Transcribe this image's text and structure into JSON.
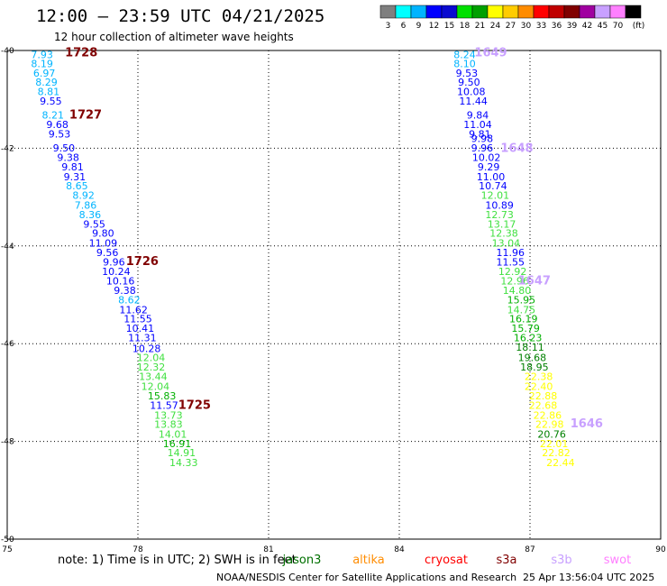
{
  "header": {
    "title": "12:00 – 23:59 UTC 04/21/2025",
    "subtitle": "12 hour collection of altimeter wave heights"
  },
  "colorbar": {
    "labels": [
      "3",
      "6",
      "9",
      "12",
      "15",
      "18",
      "21",
      "24",
      "27",
      "30",
      "33",
      "36",
      "39",
      "42",
      "45",
      "70",
      "(ft)"
    ],
    "colors": [
      "#7f7f7f",
      "#00ffff",
      "#00b4ff",
      "#0000ff",
      "#0a0ad0",
      "#00e000",
      "#00a000",
      "#ffff00",
      "#ffcc00",
      "#ff8c00",
      "#ff0000",
      "#c00000",
      "#800000",
      "#a000a0",
      "#c8a0ff",
      "#ff80ff",
      "#000000"
    ]
  },
  "footer": {
    "note_text": "note:  1) Time is in UTC; 2) SWH is in feet",
    "credit": "NOAA/NESDIS Center for Satellite Applications and Research",
    "timestamp": "25 Apr 13:56:04 UTC 2025",
    "satellites": [
      {
        "name": "jason3",
        "color": "#007000"
      },
      {
        "name": "altika",
        "color": "#ff8c00"
      },
      {
        "name": "cryosat",
        "color": "#ff0000"
      },
      {
        "name": "s3a",
        "color": "#800000"
      },
      {
        "name": "s3b",
        "color": "#c8a0ff"
      },
      {
        "name": "swot",
        "color": "#ff80ff"
      }
    ]
  },
  "chart_data": {
    "type": "scatter",
    "title": "12:00 – 23:59 UTC 04/21/2025",
    "xlim": [
      75,
      90
    ],
    "ylim": [
      -50,
      -40
    ],
    "xticks": [
      75,
      78,
      81,
      84,
      87,
      90
    ],
    "yticks": [
      -40,
      -42,
      -44,
      -46,
      -48,
      -50
    ],
    "ytick_labels": [
      "-40",
      "-42",
      "-44",
      "-46",
      "-48",
      "-50"
    ],
    "grid": true,
    "series": [
      {
        "name": "s3b",
        "color": "#c8a0ff",
        "points": [
          {
            "x": 75.8,
            "y": -40.08,
            "v": "7.93"
          },
          {
            "x": 75.8,
            "y": -40.27,
            "v": "8.19"
          },
          {
            "x": 75.85,
            "y": -40.46,
            "v": "6.97"
          },
          {
            "x": 75.9,
            "y": -40.65,
            "v": "8.29"
          },
          {
            "x": 75.95,
            "y": -40.84,
            "v": "8.81"
          },
          {
            "x": 76.0,
            "y": -41.03,
            "v": "9.55"
          },
          {
            "x": 76.05,
            "y": -41.32,
            "v": "8.21"
          },
          {
            "x": 76.15,
            "y": -41.51,
            "v": "9.68"
          },
          {
            "x": 76.2,
            "y": -41.71,
            "v": "9.53"
          },
          {
            "x": 76.3,
            "y": -41.99,
            "v": "9.50"
          },
          {
            "x": 76.4,
            "y": -42.19,
            "v": "9.38"
          },
          {
            "x": 76.5,
            "y": -42.38,
            "v": "9.81"
          },
          {
            "x": 76.55,
            "y": -42.58,
            "v": "9.31"
          },
          {
            "x": 76.6,
            "y": -42.77,
            "v": "8.65"
          },
          {
            "x": 76.75,
            "y": -42.96,
            "v": "8.92"
          },
          {
            "x": 76.8,
            "y": -43.16,
            "v": "7.86"
          },
          {
            "x": 76.9,
            "y": -43.36,
            "v": "8.36"
          },
          {
            "x": 77.0,
            "y": -43.55,
            "v": "9.55"
          },
          {
            "x": 77.2,
            "y": -43.74,
            "v": "9.80"
          },
          {
            "x": 77.2,
            "y": -43.94,
            "v": "11.09"
          },
          {
            "x": 77.3,
            "y": -44.13,
            "v": "9.56"
          },
          {
            "x": 77.45,
            "y": -44.33,
            "v": "9.96"
          },
          {
            "x": 77.5,
            "y": -44.52,
            "v": "10.24"
          },
          {
            "x": 77.6,
            "y": -44.71,
            "v": "10.16"
          },
          {
            "x": 77.7,
            "y": -44.91,
            "v": "9.38"
          },
          {
            "x": 77.8,
            "y": -45.1,
            "v": "8.62"
          },
          {
            "x": 77.9,
            "y": -45.3,
            "v": "11.62"
          },
          {
            "x": 78.0,
            "y": -45.49,
            "v": "11.55"
          },
          {
            "x": 78.05,
            "y": -45.68,
            "v": "10.41"
          },
          {
            "x": 78.1,
            "y": -45.88,
            "v": "11.31"
          },
          {
            "x": 78.2,
            "y": -46.1,
            "v": "10.28"
          },
          {
            "x": 78.3,
            "y": -46.28,
            "v": "12.04"
          },
          {
            "x": 78.3,
            "y": -46.48,
            "v": "12.32"
          },
          {
            "x": 78.35,
            "y": -46.67,
            "v": "13.44"
          },
          {
            "x": 78.4,
            "y": -46.87,
            "v": "12.04"
          },
          {
            "x": 78.55,
            "y": -47.07,
            "v": "15.83"
          },
          {
            "x": 78.6,
            "y": -47.26,
            "v": "11.57"
          },
          {
            "x": 78.7,
            "y": -47.46,
            "v": "13.73"
          },
          {
            "x": 78.7,
            "y": -47.65,
            "v": "13.83"
          },
          {
            "x": 78.8,
            "y": -47.85,
            "v": "14.01"
          },
          {
            "x": 78.9,
            "y": -48.04,
            "v": "16.91"
          },
          {
            "x": 79.0,
            "y": -48.23,
            "v": "14.91"
          },
          {
            "x": 79.05,
            "y": -48.43,
            "v": "14.33"
          },
          {
            "x": 85.5,
            "y": -40.08,
            "v": "8.24"
          },
          {
            "x": 85.5,
            "y": -40.27,
            "v": "8.10"
          },
          {
            "x": 85.55,
            "y": -40.46,
            "v": "9.53"
          },
          {
            "x": 85.6,
            "y": -40.65,
            "v": "9.50"
          },
          {
            "x": 85.65,
            "y": -40.84,
            "v": "10.08"
          },
          {
            "x": 85.7,
            "y": -41.03,
            "v": "11.44"
          },
          {
            "x": 85.8,
            "y": -41.32,
            "v": "9.84"
          },
          {
            "x": 85.8,
            "y": -41.51,
            "v": "11.04"
          },
          {
            "x": 85.85,
            "y": -41.71,
            "v": "9.81"
          },
          {
            "x": 85.9,
            "y": -41.8,
            "v": "9.98"
          },
          {
            "x": 85.9,
            "y": -41.99,
            "v": "9.96"
          },
          {
            "x": 86.0,
            "y": -42.19,
            "v": "10.02"
          },
          {
            "x": 86.05,
            "y": -42.38,
            "v": "9.29"
          },
          {
            "x": 86.1,
            "y": -42.58,
            "v": "11.00"
          },
          {
            "x": 86.15,
            "y": -42.77,
            "v": "10.74"
          },
          {
            "x": 86.2,
            "y": -42.96,
            "v": "12.01"
          },
          {
            "x": 86.3,
            "y": -43.16,
            "v": "10.89"
          },
          {
            "x": 86.3,
            "y": -43.36,
            "v": "12.73"
          },
          {
            "x": 86.35,
            "y": -43.55,
            "v": "13.17"
          },
          {
            "x": 86.4,
            "y": -43.74,
            "v": "12.38"
          },
          {
            "x": 86.45,
            "y": -43.94,
            "v": "13.04"
          },
          {
            "x": 86.55,
            "y": -44.13,
            "v": "11.96"
          },
          {
            "x": 86.55,
            "y": -44.33,
            "v": "11.55"
          },
          {
            "x": 86.6,
            "y": -44.52,
            "v": "12.92"
          },
          {
            "x": 86.65,
            "y": -44.71,
            "v": "12.96"
          },
          {
            "x": 86.7,
            "y": -44.91,
            "v": "14.80"
          },
          {
            "x": 86.8,
            "y": -45.1,
            "v": "15.95"
          },
          {
            "x": 86.8,
            "y": -45.3,
            "v": "14.75"
          },
          {
            "x": 86.85,
            "y": -45.49,
            "v": "16.19"
          },
          {
            "x": 86.9,
            "y": -45.68,
            "v": "15.79"
          },
          {
            "x": 86.95,
            "y": -45.88,
            "v": "16.23"
          },
          {
            "x": 87.0,
            "y": -46.07,
            "v": "18.11"
          },
          {
            "x": 87.05,
            "y": -46.28,
            "v": "19.68"
          },
          {
            "x": 87.1,
            "y": -46.48,
            "v": "18.95"
          },
          {
            "x": 87.2,
            "y": -46.67,
            "v": "22.38"
          },
          {
            "x": 87.2,
            "y": -46.87,
            "v": "22.40"
          },
          {
            "x": 87.3,
            "y": -47.07,
            "v": "22.88"
          },
          {
            "x": 87.3,
            "y": -47.26,
            "v": "22.68"
          },
          {
            "x": 87.4,
            "y": -47.46,
            "v": "22.86"
          },
          {
            "x": 87.45,
            "y": -47.65,
            "v": "22.98"
          },
          {
            "x": 87.5,
            "y": -47.85,
            "v": "20.76"
          },
          {
            "x": 87.55,
            "y": -48.04,
            "v": "22.01"
          },
          {
            "x": 87.6,
            "y": -48.23,
            "v": "22.82"
          },
          {
            "x": 87.7,
            "y": -48.43,
            "v": "22.44"
          }
        ]
      }
    ],
    "time_labels": [
      {
        "x": 76.7,
        "y": -40.03,
        "text": "1728",
        "color": "#800000"
      },
      {
        "x": 76.8,
        "y": -41.3,
        "text": "1727",
        "color": "#800000"
      },
      {
        "x": 78.1,
        "y": -44.3,
        "text": "1726",
        "color": "#800000"
      },
      {
        "x": 79.3,
        "y": -47.24,
        "text": "1725",
        "color": "#800000"
      },
      {
        "x": 86.1,
        "y": -40.03,
        "text": "1649",
        "color": "#c8a0ff"
      },
      {
        "x": 86.7,
        "y": -41.98,
        "text": "1648",
        "color": "#c8a0ff"
      },
      {
        "x": 87.1,
        "y": -44.7,
        "text": "1647",
        "color": "#c8a0ff"
      },
      {
        "x": 88.3,
        "y": -47.62,
        "text": "1646",
        "color": "#c8a0ff"
      }
    ]
  }
}
